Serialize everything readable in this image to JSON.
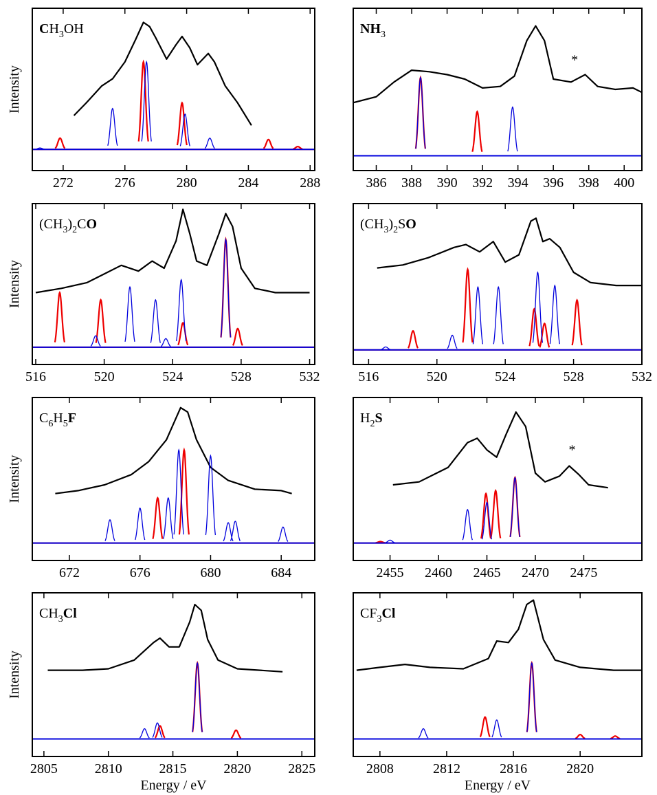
{
  "chart_data": [
    {
      "type": "line",
      "title": [
        [
          "C",
          "b"
        ],
        [
          "H",
          ""
        ],
        [
          "3",
          "sub"
        ],
        [
          "OH",
          ""
        ]
      ],
      "ylabel": "Intensity",
      "xlim": [
        270,
        288.3
      ],
      "xticks": [
        272,
        276,
        280,
        284,
        288
      ],
      "ylim": [
        -0.15,
        1
      ],
      "series": [
        {
          "style": "line",
          "color": "#000000",
          "x": [
            272.7,
            273.5,
            274.5,
            275.2,
            276,
            276.7,
            277.2,
            277.6,
            278,
            278.7,
            279.3,
            279.7,
            280.2,
            280.7,
            281.4,
            281.8,
            282.5,
            283.3,
            284.2
          ],
          "values": [
            0.24,
            0.33,
            0.45,
            0.5,
            0.62,
            0.78,
            0.9,
            0.87,
            0.79,
            0.64,
            0.74,
            0.8,
            0.72,
            0.6,
            0.68,
            0.62,
            0.45,
            0.33,
            0.17
          ]
        },
        {
          "style": "peaks",
          "color": "#ee0000",
          "x": [
            271.8,
            277.2,
            279.7,
            285.3,
            287.2
          ],
          "values": [
            0.08,
            0.62,
            0.33,
            0.07,
            0.02
          ]
        },
        {
          "style": "peaks",
          "color": "#0000dd",
          "x": [
            270.5,
            275.2,
            277.4,
            279.9,
            281.5
          ],
          "values": [
            0.01,
            0.29,
            0.62,
            0.25,
            0.08
          ]
        }
      ]
    },
    {
      "type": "line",
      "title": [
        [
          "NH",
          "b"
        ],
        [
          "3",
          "sub"
        ]
      ],
      "xlim": [
        384.7,
        401
      ],
      "xticks": [
        386,
        388,
        390,
        392,
        394,
        396,
        398,
        400
      ],
      "ylim": [
        -0.1,
        1
      ],
      "annotations": [
        {
          "text": "*",
          "x": 397.2,
          "y": 0.62
        }
      ],
      "series": [
        {
          "style": "line",
          "color": "#000000",
          "x": [
            384.7,
            386,
            387,
            388,
            389,
            390,
            391,
            392,
            393,
            393.8,
            394.5,
            395,
            395.5,
            396,
            397,
            397.8,
            398.5,
            399.5,
            400.5,
            401
          ],
          "values": [
            0.36,
            0.4,
            0.5,
            0.58,
            0.57,
            0.55,
            0.52,
            0.46,
            0.47,
            0.54,
            0.78,
            0.88,
            0.78,
            0.52,
            0.5,
            0.55,
            0.47,
            0.45,
            0.46,
            0.43
          ]
        },
        {
          "style": "peaks",
          "color": "#ee0000",
          "x": [
            388.5,
            391.7
          ],
          "values": [
            0.53,
            0.3
          ]
        },
        {
          "style": "peaks",
          "color": "#0000dd",
          "x": [
            388.5,
            393.7
          ],
          "values": [
            0.53,
            0.33
          ]
        }
      ]
    },
    {
      "type": "line",
      "title": [
        [
          "(CH",
          ""
        ],
        [
          "3",
          "sub"
        ],
        [
          ")",
          ""
        ],
        [
          "2",
          "sub"
        ],
        [
          "C",
          ""
        ],
        [
          "O",
          "b"
        ]
      ],
      "ylabel": "Intensity",
      "xlim": [
        515.8,
        532.3
      ],
      "xticks": [
        516,
        520,
        524,
        528,
        532
      ],
      "ylim": [
        -0.12,
        1
      ],
      "series": [
        {
          "style": "line",
          "color": "#000000",
          "x": [
            516,
            517.5,
            519,
            520,
            521,
            522,
            522.8,
            523.5,
            524.2,
            524.6,
            525,
            525.4,
            526,
            526.7,
            527.1,
            527.5,
            528,
            528.8,
            530,
            532
          ],
          "values": [
            0.38,
            0.41,
            0.45,
            0.51,
            0.57,
            0.53,
            0.6,
            0.55,
            0.74,
            0.96,
            0.79,
            0.6,
            0.57,
            0.79,
            0.93,
            0.84,
            0.55,
            0.41,
            0.38,
            0.38
          ]
        },
        {
          "style": "peaks",
          "color": "#ee0000",
          "x": [
            517.4,
            519.8,
            524.6,
            527.1,
            527.8
          ],
          "values": [
            0.38,
            0.33,
            0.17,
            0.75,
            0.13
          ]
        },
        {
          "style": "peaks",
          "color": "#0000dd",
          "x": [
            519.5,
            521.5,
            523,
            523.6,
            524.5,
            527.1
          ],
          "values": [
            0.08,
            0.42,
            0.33,
            0.06,
            0.47,
            0.75
          ]
        }
      ]
    },
    {
      "type": "line",
      "title": [
        [
          "(CH",
          ""
        ],
        [
          "3",
          "sub"
        ],
        [
          ")",
          ""
        ],
        [
          "2",
          "sub"
        ],
        [
          "S",
          ""
        ],
        [
          "O",
          "b"
        ]
      ],
      "xlim": [
        515.1,
        532
      ],
      "xticks": [
        516,
        520,
        524,
        528,
        532
      ],
      "ylim": [
        -0.1,
        1
      ],
      "series": [
        {
          "style": "line",
          "color": "#000000",
          "x": [
            516.5,
            518,
            519.5,
            521,
            521.7,
            522.5,
            523.3,
            524,
            524.8,
            525.5,
            525.8,
            526.2,
            526.6,
            527.2,
            528,
            529,
            530.5,
            532
          ],
          "values": [
            0.56,
            0.58,
            0.63,
            0.7,
            0.72,
            0.67,
            0.74,
            0.6,
            0.65,
            0.88,
            0.9,
            0.74,
            0.76,
            0.7,
            0.53,
            0.46,
            0.44,
            0.44
          ]
        },
        {
          "style": "peaks",
          "color": "#ee0000",
          "x": [
            518.6,
            521.8,
            525.7,
            526.3,
            528.2
          ],
          "values": [
            0.13,
            0.55,
            0.28,
            0.18,
            0.34
          ]
        },
        {
          "style": "peaks",
          "color": "#0000dd",
          "x": [
            517,
            520.9,
            522.4,
            523.6,
            525.9,
            526.9
          ],
          "values": [
            0.02,
            0.1,
            0.43,
            0.43,
            0.53,
            0.44
          ]
        }
      ]
    },
    {
      "type": "line",
      "title": [
        [
          "C",
          ""
        ],
        [
          "6",
          "sub"
        ],
        [
          "H",
          ""
        ],
        [
          "5",
          "sub"
        ],
        [
          "F",
          "b"
        ]
      ],
      "ylabel": "Intensity",
      "xlim": [
        669.9,
        685.9
      ],
      "xticks": [
        672,
        676,
        680,
        684
      ],
      "ylim": [
        -0.12,
        1
      ],
      "series": [
        {
          "style": "line",
          "color": "#000000",
          "x": [
            671.2,
            672.5,
            674,
            675.5,
            676.5,
            677.5,
            678.3,
            678.7,
            679.2,
            680,
            681,
            682.5,
            684,
            684.6
          ],
          "values": [
            0.34,
            0.36,
            0.4,
            0.47,
            0.56,
            0.71,
            0.93,
            0.9,
            0.71,
            0.52,
            0.43,
            0.37,
            0.36,
            0.34
          ]
        },
        {
          "style": "peaks",
          "color": "#ee0000",
          "x": [
            677,
            678.5
          ],
          "values": [
            0.31,
            0.64
          ]
        },
        {
          "style": "peaks",
          "color": "#0000dd",
          "x": [
            674.3,
            676,
            677.6,
            678.2,
            680,
            681,
            681.4,
            684.1
          ],
          "values": [
            0.16,
            0.24,
            0.31,
            0.64,
            0.6,
            0.14,
            0.15,
            0.11
          ]
        }
      ]
    },
    {
      "type": "line",
      "title": [
        [
          "H",
          ""
        ],
        [
          "2",
          "sub"
        ],
        [
          "S",
          "b"
        ]
      ],
      "xlim": [
        2451.2,
        2481
      ],
      "xticks": [
        2455,
        2460,
        2465,
        2470,
        2475
      ],
      "ylim": [
        -0.12,
        1
      ],
      "annotations": [
        {
          "text": "*",
          "x": 2473.8,
          "y": 0.61
        }
      ],
      "series": [
        {
          "style": "line",
          "color": "#000000",
          "x": [
            2455.3,
            2458,
            2461,
            2463,
            2464,
            2465,
            2466,
            2467,
            2468,
            2469,
            2470,
            2471,
            2472.5,
            2473.5,
            2474.5,
            2475.5,
            2477.5
          ],
          "values": [
            0.4,
            0.42,
            0.52,
            0.69,
            0.72,
            0.64,
            0.59,
            0.75,
            0.9,
            0.8,
            0.48,
            0.42,
            0.46,
            0.53,
            0.47,
            0.4,
            0.38
          ]
        },
        {
          "style": "peaks",
          "color": "#ee0000",
          "x": [
            2454,
            2464.9,
            2465.9,
            2467.9
          ],
          "values": [
            0.01,
            0.34,
            0.36,
            0.45
          ]
        },
        {
          "style": "peaks",
          "color": "#0000dd",
          "x": [
            2455,
            2463,
            2465,
            2467.9
          ],
          "values": [
            0.02,
            0.23,
            0.28,
            0.45
          ]
        }
      ]
    },
    {
      "type": "line",
      "title": [
        [
          "CH",
          ""
        ],
        [
          "3",
          "sub"
        ],
        [
          "Cl",
          "b"
        ]
      ],
      "ylabel": "Intensity",
      "xlabel": "Energy / eV",
      "xlim": [
        2804.1,
        2826
      ],
      "xticks": [
        2805,
        2810,
        2815,
        2820,
        2825
      ],
      "ylim": [
        -0.12,
        1
      ],
      "series": [
        {
          "style": "line",
          "color": "#000000",
          "x": [
            2805.3,
            2808,
            2810,
            2812,
            2813.5,
            2814,
            2814.7,
            2815.5,
            2816.3,
            2816.7,
            2817.2,
            2817.7,
            2818.5,
            2820,
            2823.5
          ],
          "values": [
            0.47,
            0.47,
            0.48,
            0.54,
            0.66,
            0.69,
            0.63,
            0.63,
            0.8,
            0.92,
            0.88,
            0.68,
            0.54,
            0.48,
            0.46
          ]
        },
        {
          "style": "peaks",
          "color": "#ee0000",
          "x": [
            2814,
            2816.9,
            2819.9
          ],
          "values": [
            0.09,
            0.52,
            0.06
          ]
        },
        {
          "style": "peaks",
          "color": "#0000dd",
          "x": [
            2812.8,
            2813.8,
            2816.9
          ],
          "values": [
            0.07,
            0.11,
            0.52
          ]
        }
      ]
    },
    {
      "type": "line",
      "title": [
        [
          "CF",
          ""
        ],
        [
          "3",
          "sub"
        ],
        [
          "Cl",
          "b"
        ]
      ],
      "xlabel": "Energy / eV",
      "xlim": [
        2806.4,
        2823.7
      ],
      "xticks": [
        2808,
        2812,
        2816,
        2820
      ],
      "ylim": [
        -0.12,
        1
      ],
      "series": [
        {
          "style": "line",
          "color": "#000000",
          "x": [
            2806.6,
            2808,
            2809.5,
            2811,
            2813,
            2814.5,
            2815,
            2815.7,
            2816.3,
            2816.8,
            2817.2,
            2817.8,
            2818.5,
            2820,
            2822,
            2823.7
          ],
          "values": [
            0.47,
            0.49,
            0.51,
            0.49,
            0.48,
            0.55,
            0.67,
            0.66,
            0.75,
            0.92,
            0.95,
            0.68,
            0.54,
            0.49,
            0.47,
            0.47
          ]
        },
        {
          "style": "peaks",
          "color": "#ee0000",
          "x": [
            2814.3,
            2817.1,
            2820,
            2822.1
          ],
          "values": [
            0.15,
            0.52,
            0.03,
            0.02
          ]
        },
        {
          "style": "peaks",
          "color": "#0000dd",
          "x": [
            2810.6,
            2815,
            2817.1
          ],
          "values": [
            0.07,
            0.13,
            0.52
          ]
        }
      ]
    }
  ]
}
